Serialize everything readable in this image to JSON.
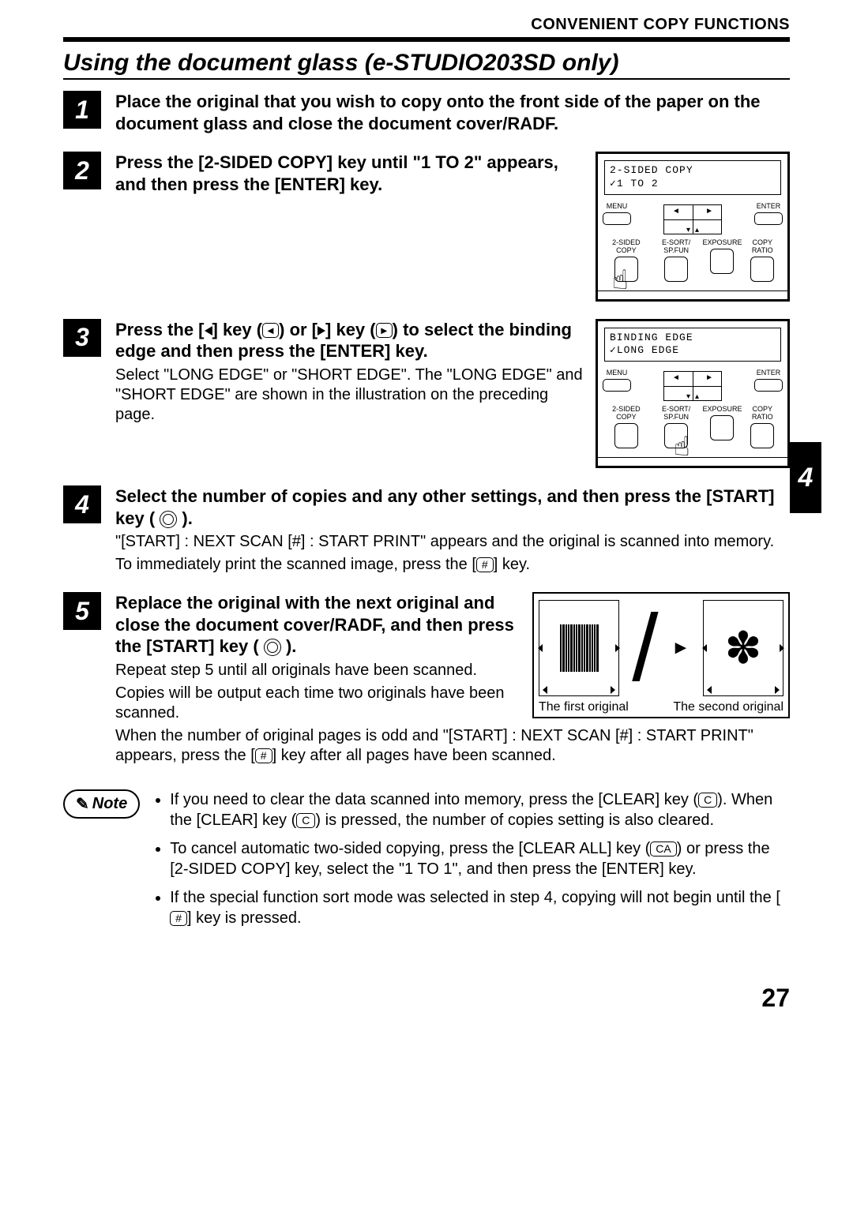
{
  "header": "CONVENIENT COPY FUNCTIONS",
  "section_title": "Using the document glass (e-STUDIO203SD only)",
  "chapter_tab": "4",
  "page_number": "27",
  "steps": {
    "s1": {
      "num": "1",
      "title": "Place the original that you wish to copy onto the front side of the paper on the document glass and close the document cover/RADF."
    },
    "s2": {
      "num": "2",
      "title": "Press the [2-SIDED COPY] key until \"1 TO 2\" appears, and then press the [ENTER] key."
    },
    "s3": {
      "num": "3",
      "title_a": "Press the [",
      "title_b": "] key (",
      "title_c": ") or [",
      "title_d": "] key (",
      "title_e": ") to select the binding edge and then press the [ENTER] key.",
      "desc": "Select \"LONG EDGE\" or \"SHORT EDGE\". The \"LONG EDGE\" and \"SHORT EDGE\" are shown in the illustration on the preceding page."
    },
    "s4": {
      "num": "4",
      "title": "Select the number of copies and any other settings, and then press the [START] key (",
      "title_end": ").",
      "desc_a": "\"[START] : NEXT SCAN  [#] : START PRINT\" appears and the original is scanned into memory.",
      "desc_b": "To immediately print the scanned image, press the [",
      "desc_c": "] key."
    },
    "s5": {
      "num": "5",
      "title": "Replace the original with the next original and close the document cover/RADF, and then press the [START] key (",
      "title_end": ").",
      "desc_a": "Repeat step 5 until all originals have been scanned.",
      "desc_b": "Copies will be output each time two originals have been scanned.",
      "desc_c": "When the number of original pages is odd and \"[START] : NEXT SCAN  [#] : START PRINT\" appears, press the [",
      "desc_d": "] key after all pages have been scanned."
    }
  },
  "panel1": {
    "lcd_line1": "2-SIDED COPY",
    "lcd_line2": "✓1 TO 2",
    "menu": "MENU",
    "enter": "ENTER",
    "b1": "2-SIDED COPY",
    "b2": "E-SORT/ SP.FUN",
    "b3": "EXPOSURE",
    "b4": "COPY RATIO"
  },
  "panel2": {
    "lcd_line1": "BINDING EDGE",
    "lcd_line2": "✓LONG EDGE",
    "menu": "MENU",
    "enter": "ENTER",
    "b1": "2-SIDED COPY",
    "b2": "E-SORT/ SP.FUN",
    "b3": "EXPOSURE",
    "b4": "COPY RATIO"
  },
  "originals": {
    "cap1": "The first original",
    "cap2": "The second original"
  },
  "note": {
    "label": "Note",
    "n1a": "If you need to clear the data scanned into memory, press the [CLEAR] key (",
    "n1b": "). When the [CLEAR] key (",
    "n1c": ") is pressed, the number of copies setting is also cleared.",
    "n2a": "To cancel automatic two-sided copying, press the [CLEAR ALL] key (",
    "n2b": ") or press the [2-SIDED COPY] key, select the \"1 TO 1\", and then press the [ENTER] key.",
    "n3a": "If the special function sort mode was selected in step 4, copying will not begin until the [",
    "n3b": "] key is pressed."
  },
  "keys": {
    "clear": "C",
    "clear_all": "CA",
    "hash": "#"
  }
}
